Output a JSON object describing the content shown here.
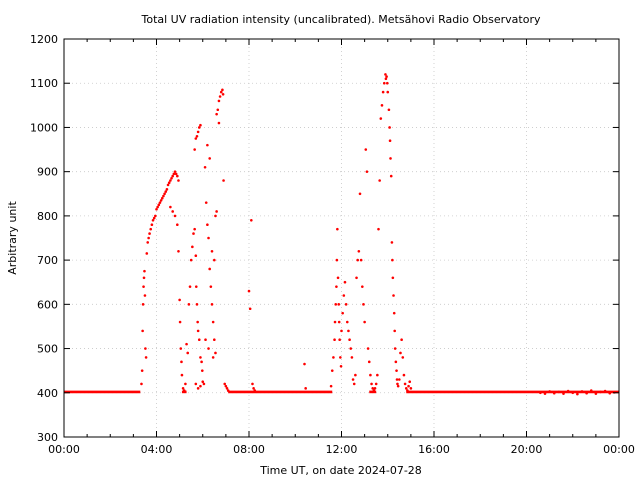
{
  "chart_data": {
    "type": "scatter",
    "title": "Total UV radiation intensity (uncalibrated). Metsähovi Radio Observatory",
    "xlabel": "Time UT, on date 2024-07-28",
    "ylabel": "Arbitrary unit",
    "xlim": [
      0,
      24
    ],
    "ylim": [
      300,
      1200
    ],
    "grid": true,
    "series_color": "#ff0000",
    "x_ticks": [
      {
        "value": 0,
        "label": "00:00"
      },
      {
        "value": 4,
        "label": "04:00"
      },
      {
        "value": 8,
        "label": "08:00"
      },
      {
        "value": 12,
        "label": "12:00"
      },
      {
        "value": 16,
        "label": "16:00"
      },
      {
        "value": 20,
        "label": "20:00"
      },
      {
        "value": 24,
        "label": "00:00"
      }
    ],
    "y_ticks": [
      300,
      400,
      500,
      600,
      700,
      800,
      900,
      1000,
      1100,
      1200
    ],
    "baseline": {
      "value": 402,
      "segments": [
        [
          0,
          3.3
        ],
        [
          5.1,
          5.3
        ],
        [
          7.1,
          11.6
        ],
        [
          13.2,
          13.5
        ],
        [
          14.8,
          24
        ]
      ]
    },
    "points": [
      [
        3.35,
        420
      ],
      [
        3.38,
        450
      ],
      [
        3.4,
        540
      ],
      [
        3.42,
        600
      ],
      [
        3.44,
        640
      ],
      [
        3.46,
        660
      ],
      [
        3.48,
        675
      ],
      [
        3.5,
        620
      ],
      [
        3.52,
        500
      ],
      [
        3.55,
        480
      ],
      [
        3.58,
        715
      ],
      [
        3.62,
        740
      ],
      [
        3.66,
        750
      ],
      [
        3.7,
        760
      ],
      [
        3.75,
        770
      ],
      [
        3.8,
        780
      ],
      [
        3.85,
        790
      ],
      [
        3.9,
        795
      ],
      [
        3.95,
        800
      ],
      [
        4.0,
        815
      ],
      [
        4.05,
        820
      ],
      [
        4.1,
        825
      ],
      [
        4.15,
        830
      ],
      [
        4.2,
        835
      ],
      [
        4.25,
        840
      ],
      [
        4.3,
        845
      ],
      [
        4.35,
        850
      ],
      [
        4.4,
        855
      ],
      [
        4.45,
        860
      ],
      [
        4.5,
        870
      ],
      [
        4.55,
        875
      ],
      [
        4.6,
        880
      ],
      [
        4.65,
        885
      ],
      [
        4.7,
        890
      ],
      [
        4.75,
        895
      ],
      [
        4.8,
        900
      ],
      [
        4.85,
        895
      ],
      [
        4.9,
        890
      ],
      [
        4.95,
        880
      ],
      [
        4.6,
        820
      ],
      [
        4.7,
        810
      ],
      [
        4.8,
        800
      ],
      [
        4.9,
        780
      ],
      [
        4.95,
        720
      ],
      [
        5.0,
        610
      ],
      [
        5.02,
        560
      ],
      [
        5.05,
        500
      ],
      [
        5.08,
        470
      ],
      [
        5.1,
        440
      ],
      [
        5.15,
        410
      ],
      [
        5.2,
        405
      ],
      [
        5.25,
        420
      ],
      [
        5.3,
        510
      ],
      [
        5.35,
        490
      ],
      [
        5.4,
        600
      ],
      [
        5.45,
        640
      ],
      [
        5.5,
        700
      ],
      [
        5.55,
        730
      ],
      [
        5.6,
        760
      ],
      [
        5.65,
        950
      ],
      [
        5.7,
        975
      ],
      [
        5.75,
        980
      ],
      [
        5.8,
        990
      ],
      [
        5.85,
        1000
      ],
      [
        5.9,
        1005
      ],
      [
        5.65,
        770
      ],
      [
        5.7,
        710
      ],
      [
        5.72,
        640
      ],
      [
        5.75,
        600
      ],
      [
        5.78,
        560
      ],
      [
        5.8,
        540
      ],
      [
        5.85,
        520
      ],
      [
        5.9,
        480
      ],
      [
        5.95,
        470
      ],
      [
        5.98,
        450
      ],
      [
        5.7,
        420
      ],
      [
        5.8,
        410
      ],
      [
        5.9,
        415
      ],
      [
        6.0,
        425
      ],
      [
        6.05,
        420
      ],
      [
        6.1,
        910
      ],
      [
        6.15,
        830
      ],
      [
        6.2,
        780
      ],
      [
        6.25,
        750
      ],
      [
        6.3,
        680
      ],
      [
        6.35,
        640
      ],
      [
        6.4,
        600
      ],
      [
        6.45,
        560
      ],
      [
        6.5,
        520
      ],
      [
        6.55,
        490
      ],
      [
        6.6,
        1030
      ],
      [
        6.65,
        1040
      ],
      [
        6.7,
        1060
      ],
      [
        6.75,
        1070
      ],
      [
        6.8,
        1080
      ],
      [
        6.85,
        1085
      ],
      [
        6.88,
        1075
      ],
      [
        6.9,
        880
      ],
      [
        6.95,
        420
      ],
      [
        7.0,
        415
      ],
      [
        6.2,
        960
      ],
      [
        6.3,
        930
      ],
      [
        6.4,
        720
      ],
      [
        6.5,
        700
      ],
      [
        6.55,
        800
      ],
      [
        6.6,
        810
      ],
      [
        6.7,
        1010
      ],
      [
        6.12,
        520
      ],
      [
        6.25,
        500
      ],
      [
        6.45,
        480
      ],
      [
        7.05,
        410
      ],
      [
        7.1,
        405
      ],
      [
        8.0,
        630
      ],
      [
        8.05,
        590
      ],
      [
        8.1,
        790
      ],
      [
        8.15,
        420
      ],
      [
        8.2,
        410
      ],
      [
        8.25,
        405
      ],
      [
        10.4,
        465
      ],
      [
        10.45,
        410
      ],
      [
        11.55,
        415
      ],
      [
        11.6,
        450
      ],
      [
        11.65,
        480
      ],
      [
        11.7,
        520
      ],
      [
        11.72,
        560
      ],
      [
        11.75,
        600
      ],
      [
        11.78,
        640
      ],
      [
        11.8,
        700
      ],
      [
        11.82,
        770
      ],
      [
        11.85,
        660
      ],
      [
        11.88,
        600
      ],
      [
        11.9,
        560
      ],
      [
        11.92,
        520
      ],
      [
        11.95,
        480
      ],
      [
        11.98,
        460
      ],
      [
        12.0,
        540
      ],
      [
        12.05,
        580
      ],
      [
        12.1,
        620
      ],
      [
        12.15,
        650
      ],
      [
        12.2,
        600
      ],
      [
        12.25,
        560
      ],
      [
        12.3,
        540
      ],
      [
        12.35,
        520
      ],
      [
        12.4,
        500
      ],
      [
        12.45,
        480
      ],
      [
        12.5,
        430
      ],
      [
        12.55,
        420
      ],
      [
        12.6,
        440
      ],
      [
        12.65,
        660
      ],
      [
        12.7,
        700
      ],
      [
        12.75,
        720
      ],
      [
        12.8,
        850
      ],
      [
        12.85,
        700
      ],
      [
        12.9,
        640
      ],
      [
        12.95,
        600
      ],
      [
        13.0,
        560
      ],
      [
        13.05,
        950
      ],
      [
        13.1,
        900
      ],
      [
        13.15,
        500
      ],
      [
        13.2,
        470
      ],
      [
        13.25,
        440
      ],
      [
        13.3,
        420
      ],
      [
        13.35,
        410
      ],
      [
        13.4,
        405
      ],
      [
        13.45,
        410
      ],
      [
        13.5,
        420
      ],
      [
        13.55,
        440
      ],
      [
        13.6,
        770
      ],
      [
        13.65,
        880
      ],
      [
        13.7,
        1020
      ],
      [
        13.75,
        1050
      ],
      [
        13.8,
        1080
      ],
      [
        13.85,
        1100
      ],
      [
        13.9,
        1120
      ],
      [
        13.92,
        1110
      ],
      [
        13.95,
        1115
      ],
      [
        13.98,
        1100
      ],
      [
        14.0,
        1080
      ],
      [
        14.05,
        1040
      ],
      [
        14.08,
        1000
      ],
      [
        14.1,
        970
      ],
      [
        14.12,
        930
      ],
      [
        14.15,
        890
      ],
      [
        14.18,
        740
      ],
      [
        14.2,
        700
      ],
      [
        14.22,
        660
      ],
      [
        14.25,
        620
      ],
      [
        14.28,
        580
      ],
      [
        14.3,
        540
      ],
      [
        14.32,
        500
      ],
      [
        14.35,
        470
      ],
      [
        14.38,
        450
      ],
      [
        14.4,
        430
      ],
      [
        14.42,
        420
      ],
      [
        14.45,
        415
      ],
      [
        14.5,
        430
      ],
      [
        14.55,
        490
      ],
      [
        14.6,
        520
      ],
      [
        14.65,
        480
      ],
      [
        14.7,
        440
      ],
      [
        14.75,
        420
      ],
      [
        14.8,
        410
      ],
      [
        14.85,
        405
      ],
      [
        14.9,
        415
      ],
      [
        14.95,
        425
      ],
      [
        15.0,
        410
      ],
      [
        20.6,
        400
      ],
      [
        20.8,
        398
      ],
      [
        21.0,
        403
      ],
      [
        21.2,
        399
      ],
      [
        21.4,
        402
      ],
      [
        21.6,
        398
      ],
      [
        21.8,
        404
      ],
      [
        22.0,
        400
      ],
      [
        22.2,
        397
      ],
      [
        22.4,
        403
      ],
      [
        22.6,
        399
      ],
      [
        22.8,
        405
      ],
      [
        23.0,
        398
      ],
      [
        23.2,
        402
      ],
      [
        23.4,
        404
      ],
      [
        23.6,
        399
      ],
      [
        23.8,
        401
      ]
    ]
  }
}
